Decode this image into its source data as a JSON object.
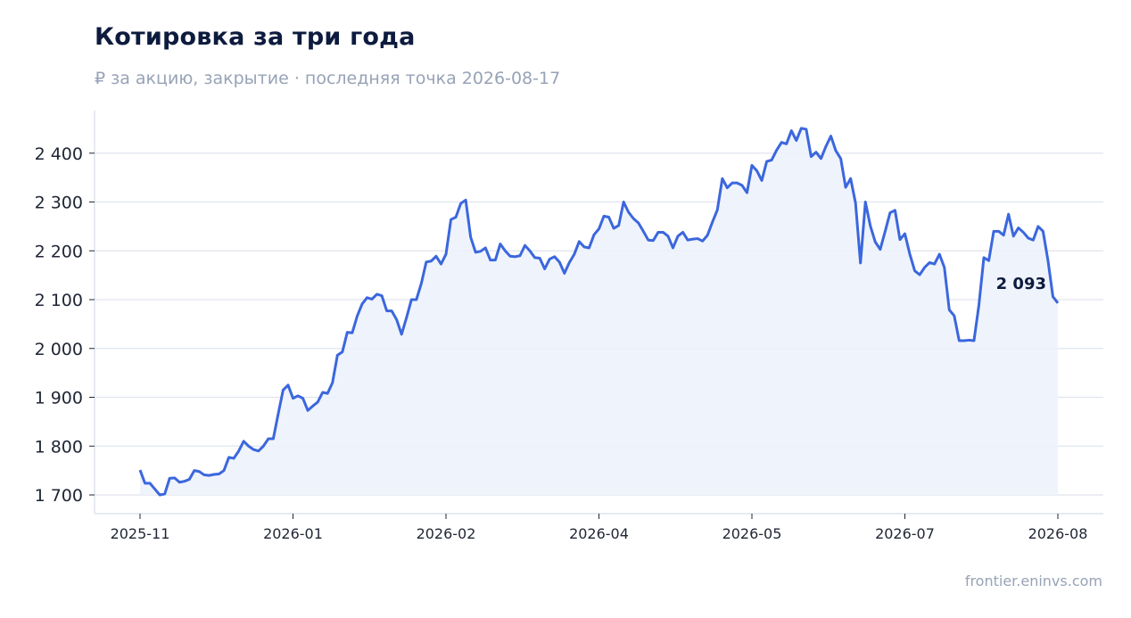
{
  "title": "Котировка за три года",
  "subtitle": "₽ за акцию, закрытие · последняя точка 2026-08-17",
  "source": "frontier.eninvs.com",
  "colors": {
    "line": "#3b67dd",
    "fill": "#edf2fc",
    "grid": "#dfe4ee",
    "axis": "#dfe4ee"
  },
  "chart_data": {
    "type": "area",
    "title": "Котировка за три года",
    "xlabel": "",
    "ylabel": "",
    "ylim": [
      1660,
      2490
    ],
    "grid": true,
    "y_ticks": [
      1700,
      1800,
      1900,
      2000,
      2100,
      2200,
      2300,
      2400
    ],
    "y_tick_labels": [
      "1 700",
      "1 800",
      "1 900",
      "2 000",
      "2 100",
      "2 200",
      "2 300",
      "2 400"
    ],
    "x_tick_labels": [
      "2025-11",
      "2026-01",
      "2026-02",
      "2026-04",
      "2026-05",
      "2026-07",
      "2026-08"
    ],
    "last_value_label": "2 093",
    "series": [
      {
        "values": [
          1751,
          1724,
          1724,
          1712,
          1700,
          1702,
          1734,
          1735,
          1726,
          1728,
          1732,
          1750,
          1748,
          1741,
          1740,
          1742,
          1743,
          1750,
          1777,
          1775,
          1790,
          1810,
          1800,
          1793,
          1790,
          1800,
          1815,
          1815,
          1866,
          1915,
          1925,
          1898,
          1903,
          1898,
          1873,
          1882,
          1890,
          1910,
          1908,
          1930,
          1986,
          1993,
          2033,
          2032,
          2066,
          2091,
          2104,
          2101,
          2111,
          2108,
          2077,
          2077,
          2059,
          2029,
          2063,
          2100,
          2100,
          2133,
          2177,
          2179,
          2189,
          2173,
          2193,
          2264,
          2269,
          2297,
          2304,
          2228,
          2197,
          2199,
          2206,
          2181,
          2181,
          2214,
          2200,
          2189,
          2188,
          2190,
          2211,
          2200,
          2186,
          2185,
          2163,
          2183,
          2188,
          2177,
          2154,
          2176,
          2193,
          2219,
          2208,
          2206,
          2233,
          2245,
          2271,
          2269,
          2246,
          2252,
          2300,
          2279,
          2266,
          2257,
          2240,
          2222,
          2221,
          2238,
          2238,
          2230,
          2206,
          2230,
          2238,
          2222,
          2224,
          2225,
          2220,
          2232,
          2259,
          2284,
          2348,
          2329,
          2339,
          2339,
          2334,
          2319,
          2375,
          2364,
          2344,
          2383,
          2386,
          2406,
          2422,
          2419,
          2446,
          2426,
          2451,
          2449,
          2393,
          2402,
          2389,
          2414,
          2435,
          2405,
          2389,
          2330,
          2348,
          2298,
          2175,
          2300,
          2251,
          2218,
          2203,
          2240,
          2278,
          2283,
          2223,
          2235,
          2193,
          2159,
          2151,
          2166,
          2176,
          2173,
          2193,
          2166,
          2079,
          2067,
          2016,
          2016,
          2017,
          2016,
          2089,
          2186,
          2180,
          2240,
          2240,
          2232,
          2275,
          2230,
          2247,
          2238,
          2226,
          2222,
          2250,
          2240,
          2180,
          2106,
          2093
        ]
      }
    ]
  }
}
